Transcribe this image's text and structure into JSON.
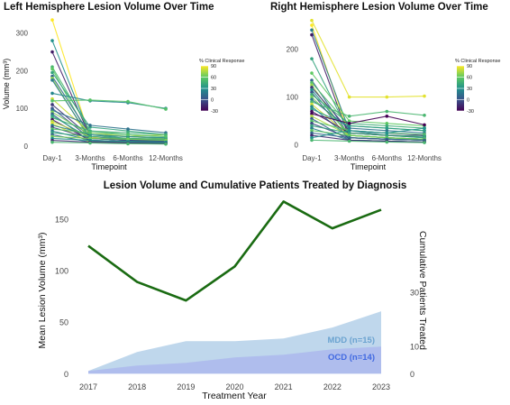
{
  "chart_data": [
    {
      "type": "line",
      "title": "Left Hemisphere Lesion Volume Over Time",
      "xlabel": "Timepoint",
      "ylabel": "Volume (mm³)",
      "categories": [
        "Day-1",
        "3-Months",
        "6-Months",
        "12-Months"
      ],
      "yticks": [
        0,
        100,
        200,
        300
      ],
      "ylim": [
        -10,
        340
      ],
      "legend": {
        "title": "% Clinical Response",
        "ticks": [
          90,
          60,
          30,
          0,
          -30
        ],
        "range": [
          -30,
          90
        ],
        "position": "right"
      },
      "colorscale": [
        "#440154",
        "#3b528b",
        "#21918c",
        "#5ec962",
        "#fde725"
      ],
      "series": [
        {
          "values": [
            335,
            22,
            15,
            10
          ],
          "response": 90
        },
        {
          "values": [
            280,
            30,
            20,
            15
          ],
          "response": 30
        },
        {
          "values": [
            250,
            25,
            18,
            12
          ],
          "response": -20
        },
        {
          "values": [
            210,
            40,
            30,
            25
          ],
          "response": 50
        },
        {
          "values": [
            205,
            20,
            15,
            12
          ],
          "response": 60
        },
        {
          "values": [
            195,
            50,
            40,
            30
          ],
          "response": 40
        },
        {
          "values": [
            185,
            30,
            25,
            20
          ],
          "response": 10
        },
        {
          "values": [
            180,
            15,
            10,
            8
          ],
          "response": 70
        },
        {
          "values": [
            175,
            20,
            15,
            10
          ],
          "response": 20
        },
        {
          "values": [
            140,
            120,
            115,
            100
          ],
          "response": 25
        },
        {
          "values": [
            125,
            35,
            25,
            30
          ],
          "response": 80
        },
        {
          "values": [
            120,
            122,
            118,
            98
          ],
          "response": 55
        },
        {
          "values": [
            110,
            25,
            20,
            15
          ],
          "response": -10
        },
        {
          "values": [
            100,
            20,
            15,
            12
          ],
          "response": 0
        },
        {
          "values": [
            95,
            55,
            45,
            35
          ],
          "response": 15
        },
        {
          "values": [
            90,
            30,
            25,
            20
          ],
          "response": 65
        },
        {
          "values": [
            85,
            12,
            10,
            8
          ],
          "response": 5
        },
        {
          "values": [
            80,
            20,
            18,
            15
          ],
          "response": 35
        },
        {
          "values": [
            75,
            40,
            35,
            30
          ],
          "response": 45
        },
        {
          "values": [
            70,
            15,
            12,
            10
          ],
          "response": -25
        },
        {
          "values": [
            65,
            25,
            20,
            18
          ],
          "response": 75
        },
        {
          "values": [
            60,
            10,
            8,
            6
          ],
          "response": 85
        },
        {
          "values": [
            55,
            30,
            25,
            22
          ],
          "response": 25
        },
        {
          "values": [
            50,
            20,
            15,
            12
          ],
          "response": -5
        },
        {
          "values": [
            45,
            35,
            30,
            25
          ],
          "response": 55
        },
        {
          "values": [
            40,
            15,
            12,
            10
          ],
          "response": 20
        },
        {
          "values": [
            35,
            25,
            20,
            18
          ],
          "response": 40
        },
        {
          "values": [
            30,
            10,
            8,
            6
          ],
          "response": 10
        },
        {
          "values": [
            25,
            20,
            18,
            15
          ],
          "response": 65
        },
        {
          "values": [
            20,
            15,
            12,
            10
          ],
          "response": 30
        },
        {
          "values": [
            15,
            10,
            8,
            6
          ],
          "response": -15
        },
        {
          "values": [
            10,
            8,
            6,
            5
          ],
          "response": 50
        }
      ]
    },
    {
      "type": "line",
      "title": "Right Hemisphere Lesion Volume Over Time",
      "xlabel": "Timepoint",
      "ylabel": "",
      "categories": [
        "Day-1",
        "3-Months",
        "6-Months",
        "12-Months"
      ],
      "yticks": [
        0,
        100,
        200
      ],
      "ylim": [
        -10,
        265
      ],
      "legend": {
        "title": "% Clinical Response",
        "ticks": [
          90,
          60,
          30,
          0,
          -30
        ],
        "range": [
          -30,
          90
        ],
        "position": "right"
      },
      "colorscale": [
        "#440154",
        "#3b528b",
        "#21918c",
        "#5ec962",
        "#fde725"
      ],
      "series": [
        {
          "values": [
            260,
            100,
            100,
            102
          ],
          "response": 85
        },
        {
          "values": [
            250,
            20,
            15,
            12
          ],
          "response": 90
        },
        {
          "values": [
            240,
            30,
            20,
            15
          ],
          "response": 20
        },
        {
          "values": [
            230,
            15,
            12,
            10
          ],
          "response": -20
        },
        {
          "values": [
            180,
            25,
            20,
            15
          ],
          "response": 40
        },
        {
          "values": [
            150,
            50,
            45,
            40
          ],
          "response": 60
        },
        {
          "values": [
            135,
            20,
            15,
            12
          ],
          "response": 10
        },
        {
          "values": [
            130,
            40,
            35,
            30
          ],
          "response": 55
        },
        {
          "values": [
            125,
            15,
            12,
            10
          ],
          "response": 70
        },
        {
          "values": [
            120,
            30,
            25,
            20
          ],
          "response": -10
        },
        {
          "values": [
            115,
            20,
            15,
            12
          ],
          "response": 30
        },
        {
          "values": [
            110,
            10,
            8,
            6
          ],
          "response": 0
        },
        {
          "values": [
            105,
            45,
            40,
            35
          ],
          "response": 45
        },
        {
          "values": [
            100,
            25,
            20,
            18
          ],
          "response": 65
        },
        {
          "values": [
            95,
            35,
            30,
            25
          ],
          "response": 15
        },
        {
          "values": [
            90,
            60,
            70,
            62
          ],
          "response": 50
        },
        {
          "values": [
            85,
            20,
            15,
            12
          ],
          "response": 80
        },
        {
          "values": [
            80,
            15,
            12,
            10
          ],
          "response": 25
        },
        {
          "values": [
            75,
            40,
            35,
            30
          ],
          "response": 35
        },
        {
          "values": [
            70,
            25,
            20,
            18
          ],
          "response": -25
        },
        {
          "values": [
            65,
            45,
            60,
            42
          ],
          "response": -30
        },
        {
          "values": [
            60,
            20,
            15,
            12
          ],
          "response": 75
        },
        {
          "values": [
            55,
            10,
            8,
            6
          ],
          "response": 5
        },
        {
          "values": [
            50,
            30,
            25,
            22
          ],
          "response": 55
        },
        {
          "values": [
            45,
            15,
            12,
            10
          ],
          "response": -5
        },
        {
          "values": [
            40,
            25,
            20,
            18
          ],
          "response": 40
        },
        {
          "values": [
            35,
            10,
            8,
            6
          ],
          "response": 20
        },
        {
          "values": [
            30,
            20,
            15,
            12
          ],
          "response": 60
        },
        {
          "values": [
            25,
            15,
            12,
            10
          ],
          "response": 10
        },
        {
          "values": [
            20,
            10,
            8,
            6
          ],
          "response": -15
        },
        {
          "values": [
            15,
            30,
            25,
            35
          ],
          "response": 30
        },
        {
          "values": [
            10,
            8,
            6,
            5
          ],
          "response": 50
        }
      ]
    },
    {
      "type": "line",
      "title": "Lesion Volume and Cumulative Patients Treated by Diagnosis",
      "xlabel": "Treatment Year",
      "ylabel": "Mean Lesion Volume (mm³)",
      "y2label": "Cumulative Patients Treated",
      "categories": [
        "2017",
        "2018",
        "2019",
        "2020",
        "2021",
        "2022",
        "2023"
      ],
      "yticks": [
        0,
        50,
        100,
        150
      ],
      "ylim": [
        -5,
        170
      ],
      "y2ticks": [
        0,
        10,
        30
      ],
      "y2lim": [
        -1.9,
        64.6
      ],
      "line": {
        "color": "#1a6b12",
        "values": [
          124,
          89,
          71,
          104,
          167,
          141,
          159
        ]
      },
      "areas": [
        {
          "name": "MDD (n=15)",
          "color": "#a9c9e6",
          "label_color": "#6ba3d0",
          "values": [
            1,
            8,
            12,
            12,
            13,
            17,
            23
          ]
        },
        {
          "name": "OCD (n=14)",
          "color": "#a9b4ee",
          "label_color": "#4169e1",
          "values": [
            1,
            3,
            4,
            6,
            7,
            9,
            10
          ]
        }
      ]
    }
  ]
}
